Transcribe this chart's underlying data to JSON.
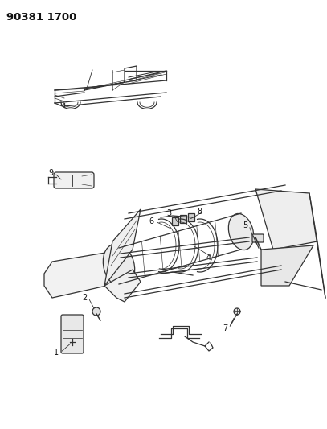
{
  "title": "90381 1700",
  "bg_color": "#ffffff",
  "line_color": "#333333",
  "label_color": "#111111",
  "fig_width": 4.07,
  "fig_height": 5.33,
  "dpi": 100
}
